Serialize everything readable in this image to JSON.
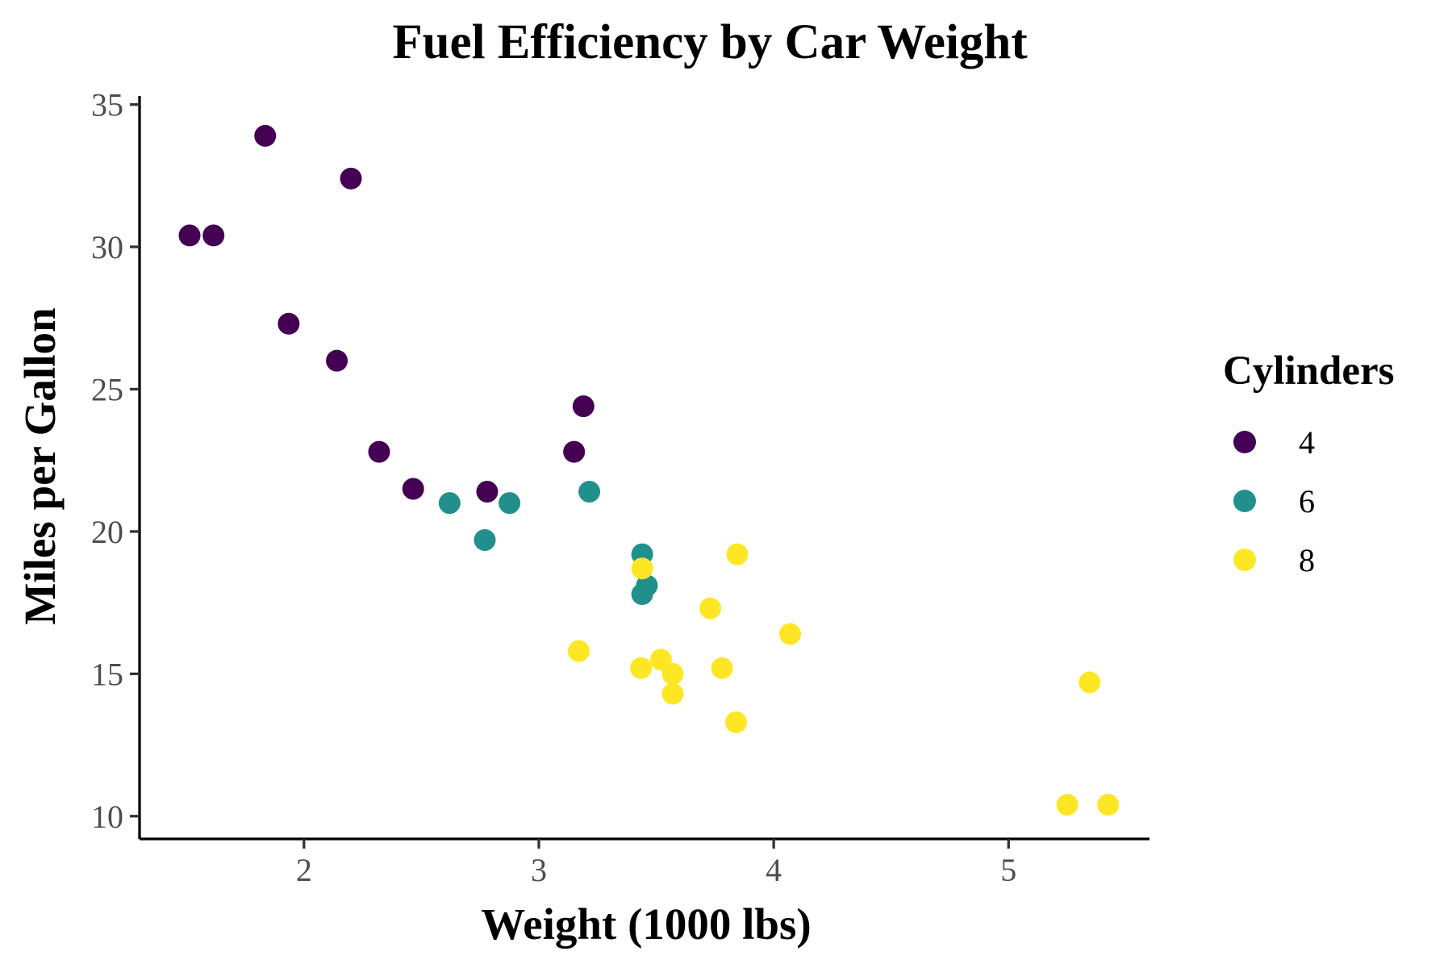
{
  "chart_data": {
    "type": "scatter",
    "title": "Fuel Efficiency by Car Weight",
    "xlabel": "Weight (1000 lbs)",
    "ylabel": "Miles per Gallon",
    "xlim": [
      1.3,
      5.6
    ],
    "ylim": [
      9.2,
      35.3
    ],
    "x_ticks": [
      2,
      3,
      4,
      5
    ],
    "y_ticks": [
      10,
      15,
      20,
      25,
      30,
      35
    ],
    "grid": false,
    "legend": {
      "title": "Cylinders",
      "position": "right"
    },
    "series": [
      {
        "name": "4",
        "color": "#440154",
        "points": [
          [
            2.32,
            22.8
          ],
          [
            3.19,
            24.4
          ],
          [
            3.15,
            22.8
          ],
          [
            2.2,
            32.4
          ],
          [
            1.615,
            30.4
          ],
          [
            1.835,
            33.9
          ],
          [
            2.465,
            21.5
          ],
          [
            1.935,
            27.3
          ],
          [
            2.14,
            26.0
          ],
          [
            1.513,
            30.4
          ],
          [
            2.78,
            21.4
          ]
        ]
      },
      {
        "name": "6",
        "color": "#21908C",
        "points": [
          [
            2.62,
            21.0
          ],
          [
            2.875,
            21.0
          ],
          [
            3.215,
            21.4
          ],
          [
            3.46,
            18.1
          ],
          [
            3.44,
            19.2
          ],
          [
            3.44,
            17.8
          ],
          [
            2.77,
            19.7
          ]
        ]
      },
      {
        "name": "8",
        "color": "#FDE725",
        "points": [
          [
            3.44,
            18.7
          ],
          [
            3.57,
            14.3
          ],
          [
            4.07,
            16.4
          ],
          [
            3.73,
            17.3
          ],
          [
            3.78,
            15.2
          ],
          [
            5.25,
            10.4
          ],
          [
            5.424,
            10.4
          ],
          [
            5.345,
            14.7
          ],
          [
            3.52,
            15.5
          ],
          [
            3.435,
            15.2
          ],
          [
            3.84,
            13.3
          ],
          [
            3.845,
            19.2
          ],
          [
            3.17,
            15.8
          ],
          [
            3.57,
            15.0
          ]
        ]
      }
    ]
  }
}
